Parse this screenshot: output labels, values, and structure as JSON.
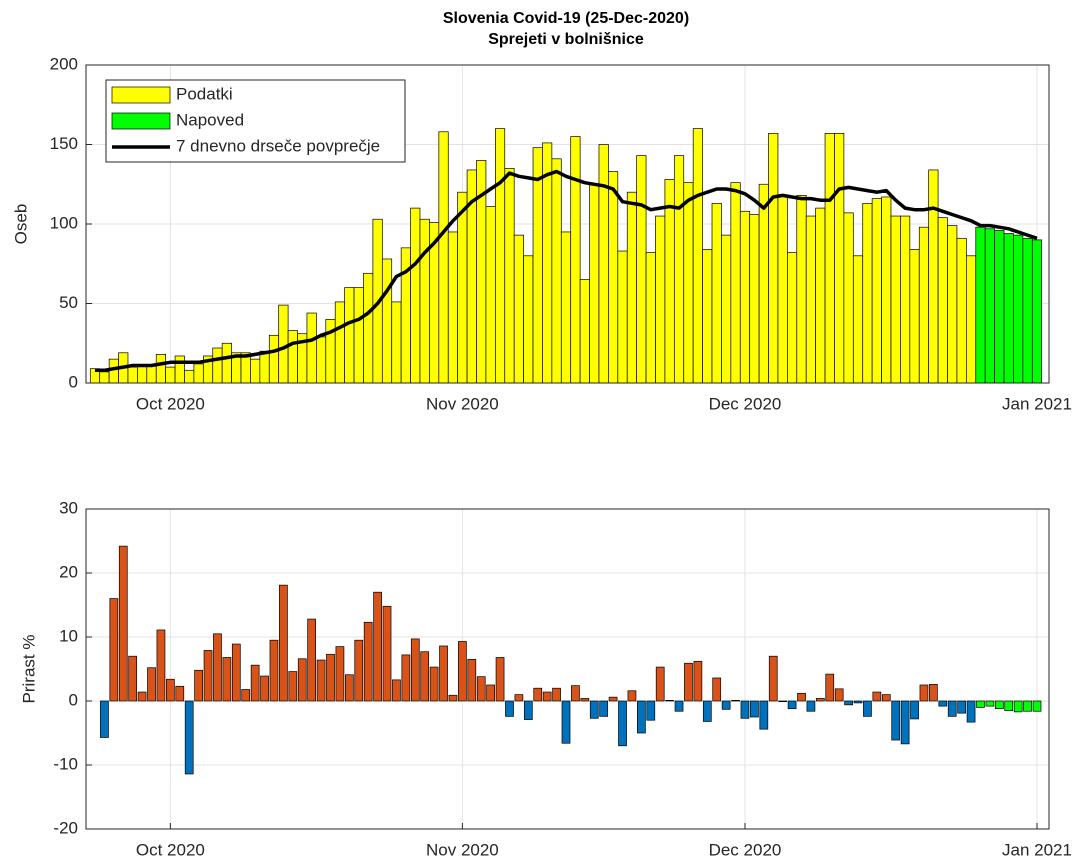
{
  "chart_data": [
    {
      "type": "bar",
      "title": "Slovenia Covid-19 (25-Dec-2020)",
      "subtitle": "Sprejeti v bolnišnice",
      "y_label": "Oseb",
      "categories": [
        null,
        null,
        null,
        null,
        null,
        null,
        null,
        null,
        "Oct 2020",
        null,
        null,
        null,
        null,
        null,
        null,
        null,
        null,
        null,
        null,
        null,
        null,
        null,
        null,
        null,
        null,
        null,
        null,
        null,
        null,
        null,
        null,
        null,
        null,
        null,
        null,
        null,
        null,
        null,
        null,
        "Nov 2020",
        null,
        null,
        null,
        null,
        null,
        null,
        null,
        null,
        null,
        null,
        null,
        null,
        null,
        null,
        null,
        null,
        null,
        null,
        null,
        null,
        null,
        null,
        null,
        null,
        null,
        null,
        null,
        null,
        null,
        "Dec 2020",
        null,
        null,
        null,
        null,
        null,
        null,
        null,
        null,
        null,
        null,
        null,
        null,
        null,
        null,
        null,
        null,
        null,
        null,
        null,
        null,
        null,
        null,
        null,
        null,
        null,
        null,
        null,
        null,
        null,
        null,
        "Jan 2021"
      ],
      "series": [
        {
          "name": "Podatki",
          "type": "bar",
          "color": "#ffff00",
          "values": [
            9,
            7,
            15,
            19,
            10,
            11,
            11,
            18,
            10,
            17,
            8,
            12,
            17,
            22,
            25,
            19,
            19,
            15,
            20,
            30,
            49,
            33,
            31,
            44,
            29,
            40,
            51,
            60,
            60,
            69,
            103,
            78,
            51,
            85,
            110,
            103,
            101,
            158,
            95,
            120,
            134,
            140,
            111,
            160,
            135,
            93,
            80,
            148,
            151,
            141,
            95,
            155,
            65,
            125,
            150,
            133,
            83,
            120,
            143,
            82,
            105,
            128,
            143,
            126,
            160,
            84,
            113,
            93,
            126,
            108,
            106,
            125,
            157,
            118,
            82,
            118,
            105,
            110,
            157,
            157,
            107,
            80,
            113,
            116,
            117,
            105,
            105,
            84,
            98,
            134,
            104,
            99,
            91,
            80,
            null,
            null,
            null,
            null,
            null,
            null,
            null
          ]
        },
        {
          "name": "Napoved",
          "type": "bar",
          "color": "#00ff00",
          "values": [
            null,
            null,
            null,
            null,
            null,
            null,
            null,
            null,
            null,
            null,
            null,
            null,
            null,
            null,
            null,
            null,
            null,
            null,
            null,
            null,
            null,
            null,
            null,
            null,
            null,
            null,
            null,
            null,
            null,
            null,
            null,
            null,
            null,
            null,
            null,
            null,
            null,
            null,
            null,
            null,
            null,
            null,
            null,
            null,
            null,
            null,
            null,
            null,
            null,
            null,
            null,
            null,
            null,
            null,
            null,
            null,
            null,
            null,
            null,
            null,
            null,
            null,
            null,
            null,
            null,
            null,
            null,
            null,
            null,
            null,
            null,
            null,
            null,
            null,
            null,
            null,
            null,
            null,
            null,
            null,
            null,
            null,
            null,
            null,
            null,
            null,
            null,
            null,
            null,
            null,
            null,
            null,
            null,
            null,
            98,
            97,
            96,
            94,
            93,
            91,
            90
          ]
        },
        {
          "name": "7 dnevno drseče povprečje",
          "type": "line",
          "color": "#000000",
          "values": [
            8,
            8,
            9,
            10,
            11,
            11,
            11,
            12,
            13,
            13,
            13,
            13,
            14,
            15,
            16,
            17,
            17,
            18,
            19,
            20,
            22,
            25,
            26,
            27,
            30,
            32,
            35,
            38,
            40,
            44,
            50,
            58,
            67,
            70,
            75,
            82,
            88,
            95,
            102,
            108,
            114,
            118,
            122,
            126,
            132,
            130,
            129,
            128,
            131,
            133,
            130,
            128,
            126,
            125,
            124,
            122,
            114,
            113,
            112,
            109,
            110,
            111,
            110,
            115,
            118,
            120,
            122,
            122,
            121,
            119,
            115,
            110,
            117,
            118,
            117,
            116,
            116,
            115,
            115,
            122,
            123,
            122,
            121,
            120,
            121,
            115,
            110,
            109,
            109,
            110,
            108,
            106,
            104,
            102,
            99,
            99,
            98,
            97,
            95,
            93,
            91
          ]
        }
      ],
      "ylim": [
        0,
        200
      ],
      "yticks": [
        0,
        50,
        100,
        150,
        200
      ],
      "grid": true,
      "legend": "upper left"
    },
    {
      "type": "bar",
      "y_label": "Prirast %",
      "categories": [
        null,
        null,
        null,
        null,
        null,
        null,
        null,
        null,
        "Oct 2020",
        null,
        null,
        null,
        null,
        null,
        null,
        null,
        null,
        null,
        null,
        null,
        null,
        null,
        null,
        null,
        null,
        null,
        null,
        null,
        null,
        null,
        null,
        null,
        null,
        null,
        null,
        null,
        null,
        null,
        null,
        "Nov 2020",
        null,
        null,
        null,
        null,
        null,
        null,
        null,
        null,
        null,
        null,
        null,
        null,
        null,
        null,
        null,
        null,
        null,
        null,
        null,
        null,
        null,
        null,
        null,
        null,
        null,
        null,
        null,
        null,
        null,
        "Dec 2020",
        null,
        null,
        null,
        null,
        null,
        null,
        null,
        null,
        null,
        null,
        null,
        null,
        null,
        null,
        null,
        null,
        null,
        null,
        null,
        null,
        null,
        null,
        null,
        null,
        null,
        null,
        null,
        null,
        null,
        null,
        "Jan 2021"
      ],
      "series": [
        {
          "type": "bar",
          "color": "#d95319",
          "negative_color": "#0072bd",
          "values": [
            null,
            -5.7,
            16,
            24.2,
            7,
            1.4,
            5.2,
            11.1,
            3.4,
            2.3,
            -11.4,
            4.8,
            7.9,
            10.5,
            6.8,
            8.9,
            1.8,
            5.6,
            3.9,
            9.5,
            18.1,
            4.6,
            6.6,
            12.8,
            6.4,
            7.3,
            8.5,
            4.1,
            9.5,
            12.3,
            17,
            14.8,
            3.3,
            7.2,
            9.7,
            7.7,
            5.3,
            8.6,
            0.9,
            9.3,
            6.5,
            3.8,
            2.5,
            6.8,
            -2.4,
            1,
            -2.9,
            2,
            1.4,
            2,
            -6.6,
            2.4,
            0.4,
            -2.7,
            -2.4,
            0.6,
            -7,
            1.6,
            -5,
            -3,
            5.3,
            0.1,
            -1.6,
            5.9,
            6.2,
            -3.2,
            3.6,
            -1.3,
            0.1,
            -2.7,
            -2.5,
            -4.4,
            7,
            -0.1,
            -1.2,
            1.2,
            -1.6,
            0.4,
            4.2,
            1.9,
            -0.6,
            -0.3,
            -2.4,
            1.4,
            1,
            -6.1,
            -6.7,
            -2.8,
            2.5,
            2.6,
            -0.8,
            -2.4,
            -1.9,
            -3.3,
            null,
            null,
            null,
            null,
            null,
            null,
            null
          ]
        },
        {
          "type": "bar",
          "color": "#00ff00",
          "values": [
            null,
            null,
            null,
            null,
            null,
            null,
            null,
            null,
            null,
            null,
            null,
            null,
            null,
            null,
            null,
            null,
            null,
            null,
            null,
            null,
            null,
            null,
            null,
            null,
            null,
            null,
            null,
            null,
            null,
            null,
            null,
            null,
            null,
            null,
            null,
            null,
            null,
            null,
            null,
            null,
            null,
            null,
            null,
            null,
            null,
            null,
            null,
            null,
            null,
            null,
            null,
            null,
            null,
            null,
            null,
            null,
            null,
            null,
            null,
            null,
            null,
            null,
            null,
            null,
            null,
            null,
            null,
            null,
            null,
            null,
            null,
            null,
            null,
            null,
            null,
            null,
            null,
            null,
            null,
            null,
            null,
            null,
            null,
            null,
            null,
            null,
            null,
            null,
            null,
            null,
            null,
            null,
            null,
            null,
            -1,
            -0.8,
            -1.2,
            -1.5,
            -1.7,
            -1.6,
            -1.6
          ]
        }
      ],
      "ylim": [
        -20,
        30
      ],
      "yticks": [
        -20,
        -10,
        0,
        10,
        20,
        30
      ],
      "grid": true
    }
  ]
}
